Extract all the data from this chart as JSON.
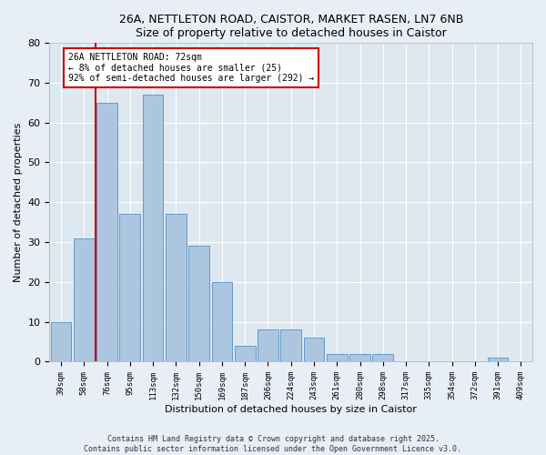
{
  "title1": "26A, NETTLETON ROAD, CAISTOR, MARKET RASEN, LN7 6NB",
  "title2": "Size of property relative to detached houses in Caistor",
  "xlabel": "Distribution of detached houses by size in Caistor",
  "ylabel": "Number of detached properties",
  "categories": [
    "39sqm",
    "58sqm",
    "76sqm",
    "95sqm",
    "113sqm",
    "132sqm",
    "150sqm",
    "169sqm",
    "187sqm",
    "206sqm",
    "224sqm",
    "243sqm",
    "261sqm",
    "280sqm",
    "298sqm",
    "317sqm",
    "335sqm",
    "354sqm",
    "372sqm",
    "391sqm",
    "409sqm"
  ],
  "values": [
    10,
    31,
    65,
    37,
    67,
    37,
    29,
    20,
    4,
    8,
    8,
    6,
    2,
    2,
    2,
    0,
    0,
    0,
    0,
    1,
    0
  ],
  "bar_color": "#adc6e0",
  "bar_edge_color": "#6699cc",
  "vline_color": "#cc0000",
  "vline_x_index": 1.5,
  "annotation_text": "26A NETTLETON ROAD: 72sqm\n← 8% of detached houses are smaller (25)\n92% of semi-detached houses are larger (292) →",
  "annotation_box_color": "#ffffff",
  "annotation_box_edge": "#cc0000",
  "ylim": [
    0,
    80
  ],
  "yticks": [
    0,
    10,
    20,
    30,
    40,
    50,
    60,
    70,
    80
  ],
  "plot_bg_color": "#dde8f0",
  "fig_bg_color": "#e8eef5",
  "footer": "Contains HM Land Registry data © Crown copyright and database right 2025.\nContains public sector information licensed under the Open Government Licence v3.0."
}
